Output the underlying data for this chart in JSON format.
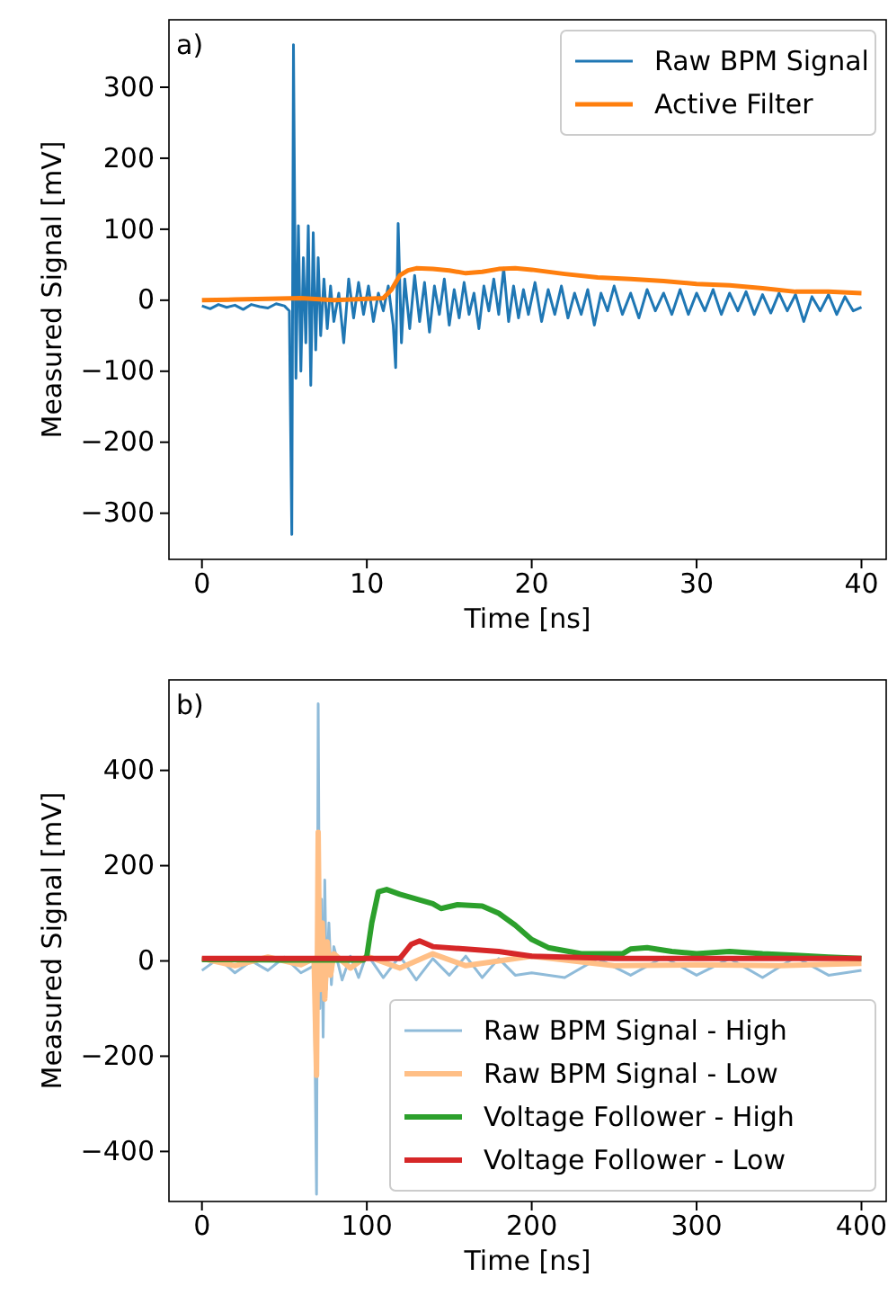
{
  "chart_data": [
    {
      "type": "line",
      "xlabel": "Time [ns]",
      "ylabel": "Measured Signal [mV]",
      "annotations": [
        "a)"
      ],
      "legend": "top right",
      "xlim": [
        -2,
        41.5
      ],
      "ylim": [
        -365,
        395
      ],
      "xticks": [
        0,
        10,
        20,
        30,
        40
      ],
      "yticks": [
        -300,
        -200,
        -100,
        0,
        100,
        200,
        300
      ],
      "series": [
        {
          "name": "Raw BPM Signal",
          "color": "#1f77b4",
          "x": [
            0,
            0.5,
            1,
            1.5,
            2,
            2.5,
            3,
            3.5,
            4,
            4.5,
            5,
            5.3,
            5.45,
            5.55,
            5.7,
            5.85,
            6,
            6.15,
            6.3,
            6.45,
            6.6,
            6.75,
            6.9,
            7.05,
            7.2,
            7.4,
            7.6,
            7.8,
            8,
            8.3,
            8.6,
            8.9,
            9.2,
            9.5,
            9.8,
            10.1,
            10.4,
            10.7,
            11,
            11.3,
            11.6,
            11.75,
            11.9,
            12.1,
            12.3,
            12.6,
            12.9,
            13.2,
            13.5,
            13.8,
            14.1,
            14.4,
            14.7,
            15,
            15.3,
            15.6,
            15.9,
            16.2,
            16.5,
            16.8,
            17.1,
            17.4,
            17.7,
            18,
            18.3,
            18.6,
            18.9,
            19.2,
            19.5,
            19.8,
            20.2,
            20.6,
            21,
            21.4,
            21.8,
            22.2,
            22.6,
            23,
            23.4,
            23.8,
            24.2,
            24.6,
            25,
            25.5,
            26,
            26.5,
            27,
            27.5,
            28,
            28.5,
            29,
            29.5,
            30,
            30.5,
            31,
            31.5,
            32,
            32.5,
            33,
            33.5,
            34,
            34.5,
            35,
            35.5,
            36,
            36.5,
            37,
            37.5,
            38,
            38.5,
            39,
            39.5,
            40
          ],
          "values": [
            -8,
            -12,
            -6,
            -10,
            -7,
            -13,
            -6,
            -9,
            -11,
            -5,
            -8,
            -15,
            -330,
            360,
            -110,
            105,
            -100,
            60,
            -60,
            105,
            -120,
            95,
            -70,
            60,
            -50,
            30,
            -40,
            20,
            -30,
            10,
            -60,
            30,
            -25,
            25,
            -20,
            20,
            -30,
            10,
            -15,
            20,
            -35,
            -95,
            108,
            -60,
            30,
            -40,
            35,
            -30,
            25,
            -45,
            20,
            -20,
            30,
            -35,
            15,
            -25,
            25,
            -20,
            10,
            -40,
            20,
            -15,
            30,
            -20,
            45,
            -30,
            20,
            -25,
            15,
            -20,
            25,
            -30,
            15,
            -20,
            20,
            -25,
            10,
            -20,
            15,
            -35,
            10,
            -15,
            20,
            -20,
            10,
            -25,
            15,
            -15,
            10,
            -20,
            15,
            -20,
            10,
            -15,
            15,
            -20,
            10,
            -15,
            12,
            -20,
            8,
            -18,
            10,
            -15,
            8,
            -30,
            5,
            -15,
            8,
            -20,
            5,
            -15,
            -10
          ]
        },
        {
          "name": "Active Filter",
          "color": "#ff7f0e",
          "x": [
            0,
            2,
            4,
            6,
            8,
            10,
            11,
            11.5,
            12,
            12.5,
            13,
            14,
            15,
            16,
            17,
            18,
            19,
            20,
            22,
            24,
            26,
            28,
            30,
            32,
            34,
            36,
            38,
            40
          ],
          "values": [
            0,
            1,
            2,
            3,
            0,
            2,
            3,
            15,
            35,
            42,
            45,
            44,
            42,
            38,
            40,
            44,
            45,
            43,
            37,
            32,
            30,
            27,
            23,
            21,
            17,
            12,
            12,
            10
          ]
        }
      ]
    },
    {
      "type": "line",
      "xlabel": "Time [ns]",
      "ylabel": "Measured Signal [mV]",
      "annotations": [
        "b)"
      ],
      "legend": "bottom right",
      "xlim": [
        -20,
        415
      ],
      "ylim": [
        -505,
        590
      ],
      "xticks": [
        0,
        100,
        200,
        300,
        400
      ],
      "yticks": [
        -400,
        -200,
        0,
        200,
        400
      ],
      "series": [
        {
          "name": "Raw BPM Signal - High",
          "color": "#8fbbd9",
          "x": [
            0,
            10,
            20,
            30,
            40,
            50,
            60,
            68,
            69.5,
            70.5,
            71.5,
            72.5,
            73.5,
            74.5,
            75.5,
            77,
            78.5,
            80,
            85,
            90,
            95,
            100,
            110,
            120,
            130,
            140,
            150,
            160,
            170,
            180,
            190,
            200,
            220,
            240,
            260,
            280,
            300,
            320,
            340,
            360,
            380,
            400
          ],
          "values": [
            -20,
            5,
            -25,
            0,
            -20,
            8,
            -25,
            -10,
            -490,
            540,
            -100,
            130,
            -160,
            170,
            -60,
            80,
            -50,
            30,
            -40,
            10,
            -35,
            15,
            -35,
            10,
            -40,
            5,
            -30,
            10,
            -35,
            5,
            -30,
            -25,
            -35,
            5,
            -30,
            8,
            -30,
            5,
            -35,
            8,
            -30,
            -20
          ]
        },
        {
          "name": "Raw BPM Signal - Low",
          "color": "#ffbf86",
          "x": [
            0,
            20,
            40,
            60,
            68,
            69.5,
            70.5,
            71.5,
            73,
            74.5,
            76,
            78,
            80,
            90,
            100,
            120,
            140,
            160,
            200,
            250,
            300,
            350,
            400
          ],
          "values": [
            5,
            -10,
            8,
            -8,
            5,
            -240,
            270,
            -60,
            80,
            -80,
            40,
            -30,
            15,
            -15,
            10,
            -15,
            15,
            -10,
            10,
            -10,
            -8,
            -10,
            -5
          ]
        },
        {
          "name": "Voltage Follower - High",
          "color": "#2ca02c",
          "x": [
            0,
            50,
            98,
            100,
            103,
            107,
            112,
            120,
            140,
            145,
            155,
            170,
            180,
            190,
            200,
            210,
            230,
            255,
            260,
            270,
            285,
            300,
            320,
            340,
            360,
            380,
            400
          ],
          "values": [
            3,
            2,
            2,
            10,
            80,
            145,
            150,
            140,
            120,
            110,
            118,
            115,
            100,
            75,
            45,
            28,
            15,
            15,
            25,
            28,
            20,
            15,
            20,
            15,
            12,
            8,
            5
          ]
        },
        {
          "name": "Voltage Follower - Low",
          "color": "#d62728",
          "x": [
            0,
            60,
            120,
            127,
            132,
            140,
            160,
            180,
            200,
            250,
            300,
            400
          ],
          "values": [
            5,
            5,
            5,
            35,
            42,
            30,
            25,
            20,
            10,
            5,
            5,
            5
          ]
        }
      ]
    }
  ]
}
